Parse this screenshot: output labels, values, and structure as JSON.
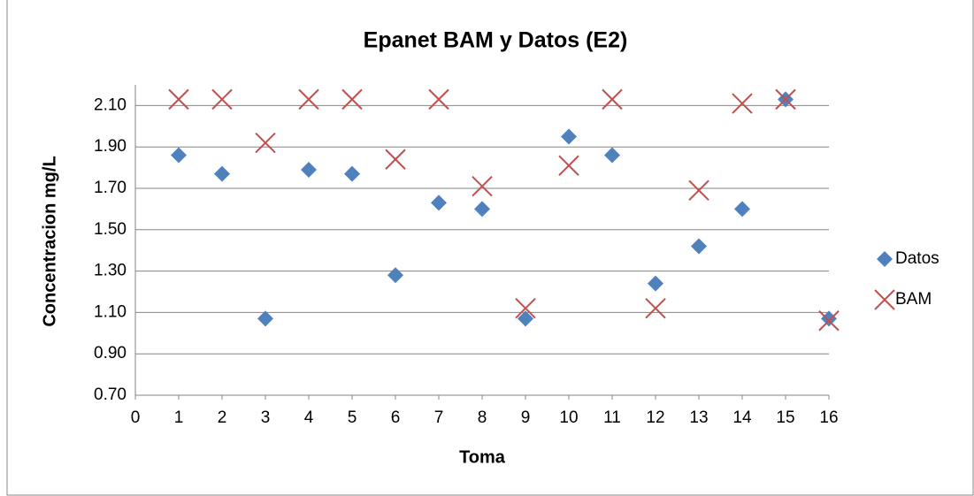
{
  "chart_data": {
    "type": "scatter",
    "title": "Epanet BAM y Datos (E2)",
    "xlabel": "Toma",
    "ylabel": "Concentracion mg/L",
    "x": [
      1,
      2,
      3,
      4,
      5,
      6,
      7,
      8,
      9,
      10,
      11,
      12,
      13,
      14,
      15,
      16
    ],
    "series": [
      {
        "name": "Datos",
        "color": "#4f81bd",
        "marker": "diamond",
        "values": [
          1.86,
          1.77,
          1.07,
          1.79,
          1.77,
          1.28,
          1.63,
          1.6,
          1.07,
          1.95,
          1.86,
          1.24,
          1.42,
          1.6,
          2.13,
          1.07
        ]
      },
      {
        "name": "BAM",
        "color": "#c0504d",
        "marker": "x",
        "values": [
          2.13,
          2.13,
          1.92,
          2.13,
          2.13,
          1.84,
          2.13,
          1.71,
          1.12,
          1.81,
          2.13,
          1.12,
          1.69,
          2.11,
          2.13,
          1.06
        ]
      }
    ],
    "xlim": [
      0,
      16
    ],
    "xticks": [
      0,
      1,
      2,
      3,
      4,
      5,
      6,
      7,
      8,
      9,
      10,
      11,
      12,
      13,
      14,
      15,
      16
    ],
    "ylim": [
      0.7,
      2.2
    ],
    "yticks": [
      {
        "value": 0.7,
        "label": "0.70"
      },
      {
        "value": 0.9,
        "label": "0.90"
      },
      {
        "value": 1.1,
        "label": "1.10"
      },
      {
        "value": 1.3,
        "label": "1.30"
      },
      {
        "value": 1.5,
        "label": "1.50"
      },
      {
        "value": 1.7,
        "label": "1.70"
      },
      {
        "value": 1.9,
        "label": "1.90"
      },
      {
        "value": 2.1,
        "label": "2.10"
      }
    ],
    "grid": true,
    "legend": "right"
  }
}
